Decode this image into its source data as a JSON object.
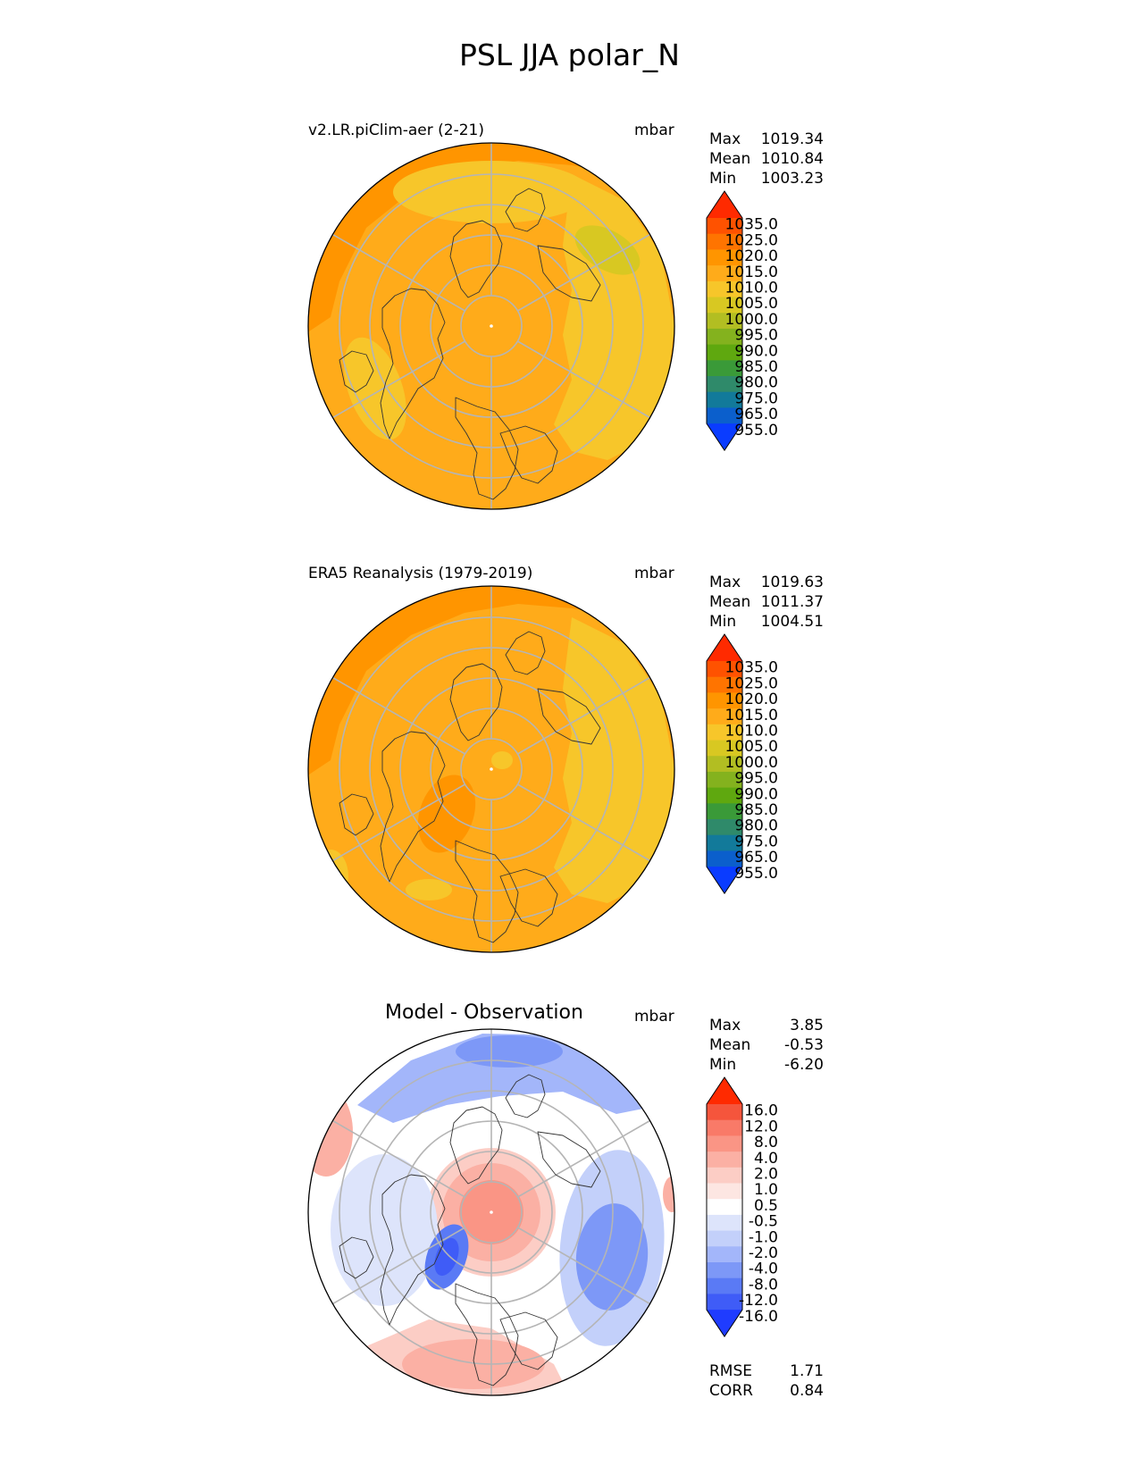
{
  "figure": {
    "title": "PSL JJA polar_N"
  },
  "panels": [
    {
      "title": "v2.LR.piClim-aer (2-21)",
      "units": "mbar",
      "stats": [
        {
          "label": "Max",
          "value": "1019.34"
        },
        {
          "label": "Mean",
          "value": "1010.84"
        },
        {
          "label": "Min",
          "value": "1003.23"
        }
      ]
    },
    {
      "title": "ERA5 Reanalysis (1979-2019)",
      "units": "mbar",
      "stats": [
        {
          "label": "Max",
          "value": "1019.63"
        },
        {
          "label": "Mean",
          "value": "1011.37"
        },
        {
          "label": "Min",
          "value": "1004.51"
        }
      ]
    },
    {
      "title": "Model - Observation",
      "units": "mbar",
      "stats": [
        {
          "label": "Max",
          "value": "3.85"
        },
        {
          "label": "Mean",
          "value": "-0.53"
        },
        {
          "label": "Min",
          "value": "-6.20"
        }
      ],
      "footer": [
        {
          "label": "RMSE",
          "value": "1.71"
        },
        {
          "label": "CORR",
          "value": "0.84"
        }
      ]
    }
  ],
  "chart_data": [
    {
      "type": "heatmap",
      "title": "v2.LR.piClim-aer (2-21)",
      "projection": "north polar stereographic",
      "units": "mbar",
      "colorbar": {
        "levels": [
          "1035.0",
          "1025.0",
          "1020.0",
          "1015.0",
          "1010.0",
          "1005.0",
          "1000.0",
          "995.0",
          "990.0",
          "985.0",
          "980.0",
          "975.0",
          "965.0",
          "955.0"
        ],
        "colors": [
          "#ff2a00",
          "#ff5200",
          "#ff7400",
          "#ff9500",
          "#ffab1a",
          "#f7c62a",
          "#d8c822",
          "#b2be22",
          "#84b21e",
          "#5fa80f",
          "#3a9a38",
          "#2f8a6a",
          "#127a9a",
          "#0b5fcc",
          "#0a3cff"
        ],
        "extend": "both"
      },
      "stats": {
        "max": 1019.34,
        "mean": 1010.84,
        "min": 1003.23
      }
    },
    {
      "type": "heatmap",
      "title": "ERA5 Reanalysis (1979-2019)",
      "projection": "north polar stereographic",
      "units": "mbar",
      "colorbar": {
        "levels": [
          "1035.0",
          "1025.0",
          "1020.0",
          "1015.0",
          "1010.0",
          "1005.0",
          "1000.0",
          "995.0",
          "990.0",
          "985.0",
          "980.0",
          "975.0",
          "965.0",
          "955.0"
        ],
        "colors": [
          "#ff2a00",
          "#ff5200",
          "#ff7400",
          "#ff9500",
          "#ffab1a",
          "#f7c62a",
          "#d8c822",
          "#b2be22",
          "#84b21e",
          "#5fa80f",
          "#3a9a38",
          "#2f8a6a",
          "#127a9a",
          "#0b5fcc",
          "#0a3cff"
        ],
        "extend": "both"
      },
      "stats": {
        "max": 1019.63,
        "mean": 1011.37,
        "min": 1004.51
      }
    },
    {
      "type": "heatmap",
      "title": "Model - Observation",
      "projection": "north polar stereographic",
      "units": "mbar",
      "colorbar": {
        "levels": [
          "16.0",
          "12.0",
          "8.0",
          "4.0",
          "2.0",
          "1.0",
          "0.5",
          "-0.5",
          "-1.0",
          "-2.0",
          "-4.0",
          "-8.0",
          "-12.0",
          "-16.0"
        ],
        "colors": [
          "#ff2a00",
          "#f5553c",
          "#f97a68",
          "#fa9585",
          "#fbb0a4",
          "#fccdc5",
          "#fde6e2",
          "#ffffff",
          "#dde4fb",
          "#c3d0fa",
          "#a3b6fa",
          "#7d98f7",
          "#5a7af5",
          "#3f5cf7",
          "#1f3cff"
        ],
        "extend": "both"
      },
      "stats": {
        "max": 3.85,
        "mean": -0.53,
        "min": -6.2,
        "rmse": 1.71,
        "corr": 0.84
      }
    }
  ]
}
